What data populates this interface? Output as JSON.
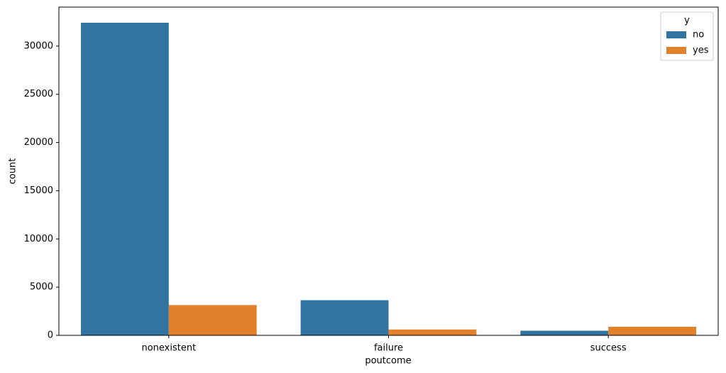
{
  "chart_data": {
    "type": "bar",
    "x_label": "poutcome",
    "y_label": "count",
    "categories": [
      "nonexistent",
      "failure",
      "success"
    ],
    "legend_title": "y",
    "legend_position": "upper right",
    "series": [
      {
        "name": "no",
        "color": "#3274a1",
        "values": [
          32422,
          3647,
          479
        ]
      },
      {
        "name": "yes",
        "color": "#e1812c",
        "values": [
          3141,
          605,
          894
        ]
      }
    ],
    "ylim": [
      0,
      34043
    ],
    "yticks": [
      0,
      5000,
      10000,
      15000,
      20000,
      25000,
      30000
    ],
    "grid": false
  }
}
